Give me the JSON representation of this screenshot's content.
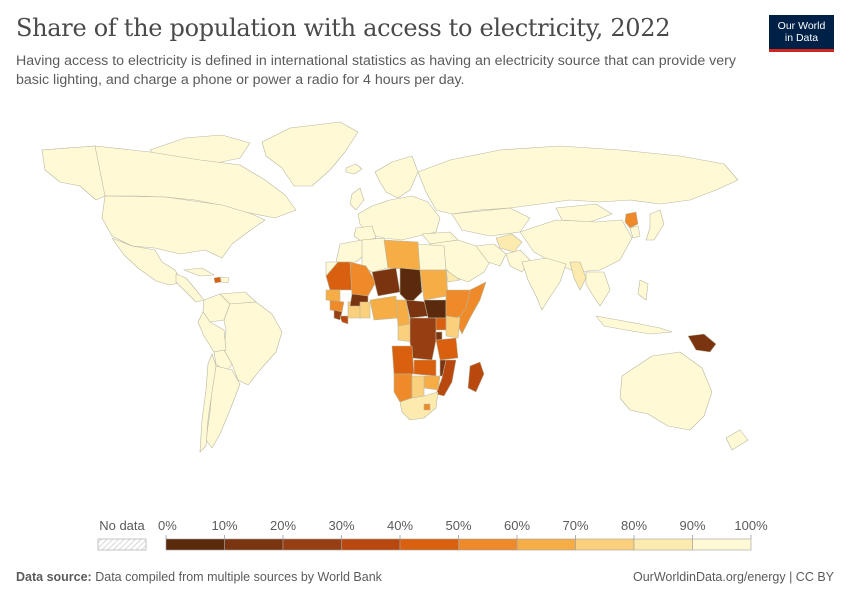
{
  "title": "Share of the population with access to electricity, 2022",
  "subtitle": "Having access to electricity is defined in international statistics as having an electricity source that can provide very basic lighting, and charge a phone or power a radio for 4 hours per day.",
  "logo": {
    "line1": "Our World",
    "line2": "in Data",
    "bg_color": "#002147",
    "accent_color": "#ce261e"
  },
  "legend": {
    "no_data_label": "No data",
    "ticks": [
      "0%",
      "10%",
      "20%",
      "30%",
      "40%",
      "50%",
      "60%",
      "70%",
      "80%",
      "90%",
      "100%"
    ],
    "colors": [
      "#5b2a0c",
      "#7b3410",
      "#973f12",
      "#b9480f",
      "#d9600f",
      "#ef8a2a",
      "#f6ad46",
      "#fbd07c",
      "#fdeaaf",
      "#fff9d6"
    ]
  },
  "footer": {
    "source_label": "Data source:",
    "source_text": "Data compiled from multiple sources by World Bank",
    "right_text": "OurWorldinData.org/energy | CC BY"
  },
  "chart_data": {
    "type": "choropleth",
    "variable": "Share of the population with access to electricity",
    "year": 2022,
    "unit": "%",
    "scale_bins": [
      0,
      10,
      20,
      30,
      40,
      50,
      60,
      70,
      80,
      90,
      100
    ],
    "regions": [
      {
        "region": "Most of the world",
        "bin": "90-100%"
      },
      {
        "region": "Chad",
        "bin": "0-10%"
      },
      {
        "region": "Niger",
        "bin": "10-20%"
      },
      {
        "region": "Burkina Faso",
        "bin": "10-20%"
      },
      {
        "region": "South Sudan",
        "bin": "0-10%"
      },
      {
        "region": "Democratic Republic of the Congo",
        "bin": "20-30%"
      },
      {
        "region": "Central African Republic",
        "bin": "10-20%"
      },
      {
        "region": "Malawi",
        "bin": "10-20%"
      },
      {
        "region": "Burundi",
        "bin": "10-20%"
      },
      {
        "region": "Mozambique",
        "bin": "30-40%"
      },
      {
        "region": "Papua New Guinea",
        "bin": "10-20%"
      },
      {
        "region": "Madagascar",
        "bin": "30-40%"
      },
      {
        "region": "Sierra Leone",
        "bin": "20-30%"
      },
      {
        "region": "Liberia",
        "bin": "30-40%"
      },
      {
        "region": "Mali",
        "bin": "50-60%"
      },
      {
        "region": "Ethiopia",
        "bin": "50-60%"
      },
      {
        "region": "Angola",
        "bin": "40-50%"
      },
      {
        "region": "Zambia",
        "bin": "40-50%"
      },
      {
        "region": "Tanzania",
        "bin": "40-50%"
      },
      {
        "region": "Uganda",
        "bin": "40-50%"
      },
      {
        "region": "North Korea",
        "bin": "50-60%"
      },
      {
        "region": "Haiti",
        "bin": "40-50%"
      },
      {
        "region": "Nigeria",
        "bin": "60-70%"
      },
      {
        "region": "Sudan",
        "bin": "60-70%"
      },
      {
        "region": "Namibia",
        "bin": "50-60%"
      },
      {
        "region": "Zimbabwe",
        "bin": "60-70%"
      },
      {
        "region": "Kenya",
        "bin": "70-80%"
      },
      {
        "region": "Cameroon",
        "bin": "60-70%"
      },
      {
        "region": "Libya",
        "bin": "60-70%"
      },
      {
        "region": "Myanmar",
        "bin": "70-80%"
      },
      {
        "region": "Botswana",
        "bin": "70-80%"
      },
      {
        "region": "Lesotho",
        "bin": "50-60%"
      },
      {
        "region": "Afghanistan",
        "bin": "80-90%"
      },
      {
        "region": "Somalia",
        "bin": "50-60%"
      },
      {
        "region": "South Africa",
        "bin": "80-90%"
      }
    ]
  }
}
